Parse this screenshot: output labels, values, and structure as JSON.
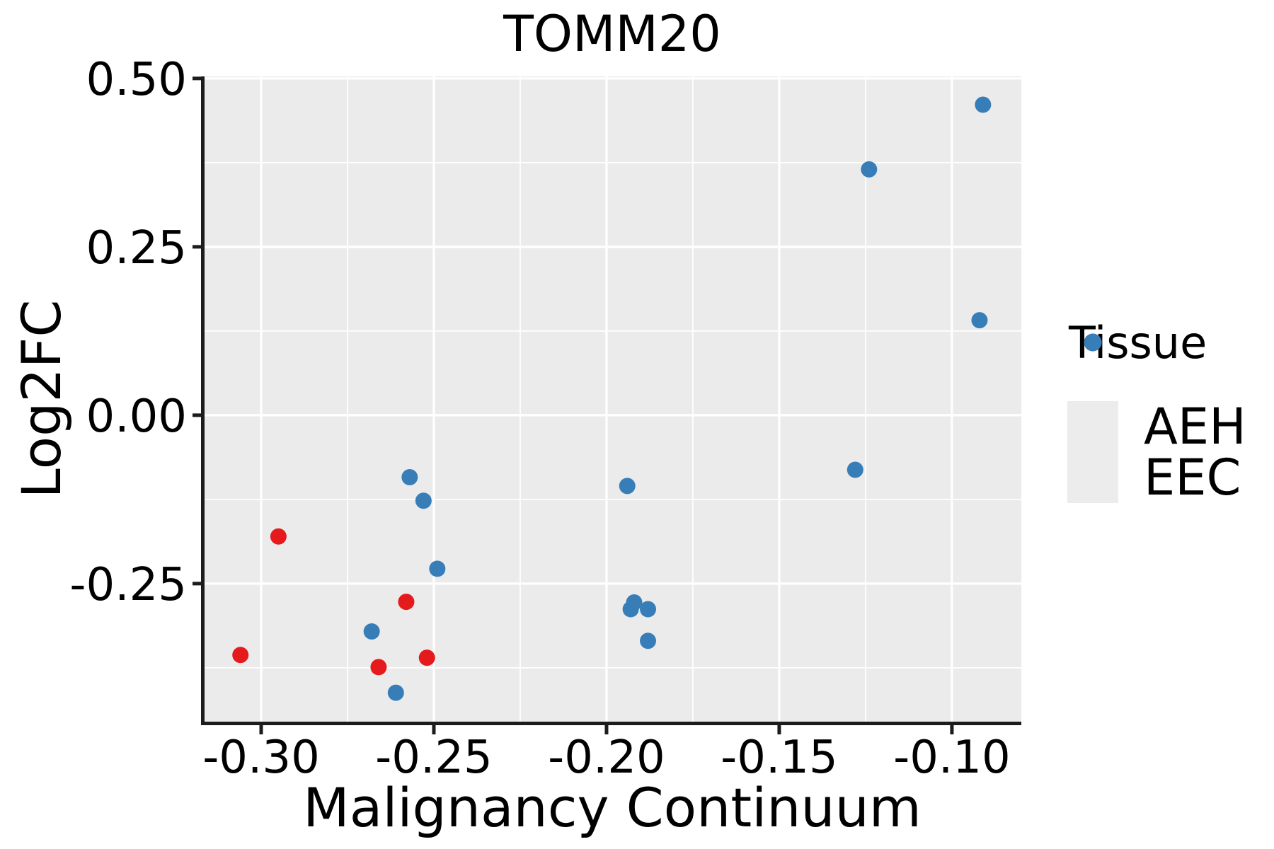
{
  "chart_data": {
    "type": "scatter",
    "title": "TOMM20",
    "xlabel": "Malignancy Continuum",
    "ylabel": "Log2FC",
    "xlim": [
      -0.3166,
      -0.0799
    ],
    "ylim": [
      -0.456,
      0.503
    ],
    "x_ticks": {
      "values": [
        -0.3,
        -0.25,
        -0.2,
        -0.15,
        -0.1
      ],
      "labels": [
        "-0.30",
        "-0.25",
        "-0.20",
        "-0.15",
        "-0.10"
      ]
    },
    "y_ticks": {
      "values": [
        0.5,
        0.25,
        0.0,
        -0.25
      ],
      "labels": [
        "0.50",
        "0.25",
        "0.00",
        "-0.25"
      ]
    },
    "x_minor": [
      -0.275,
      -0.225,
      -0.175,
      -0.125
    ],
    "y_minor": [
      0.375,
      0.125,
      -0.125,
      -0.375
    ],
    "grid": "white major and minor gridlines on gray panel",
    "legend_position": "right",
    "series": [
      {
        "name": "AEH",
        "color": "#E41A1C",
        "points": [
          [
            -0.306,
            -0.356
          ],
          [
            -0.295,
            -0.18
          ],
          [
            -0.266,
            -0.374
          ],
          [
            -0.258,
            -0.277
          ],
          [
            -0.252,
            -0.36
          ]
        ]
      },
      {
        "name": "EEC",
        "color": "#377EB8",
        "points": [
          [
            -0.268,
            -0.321
          ],
          [
            -0.261,
            -0.412
          ],
          [
            -0.257,
            -0.092
          ],
          [
            -0.253,
            -0.127
          ],
          [
            -0.249,
            -0.228
          ],
          [
            -0.194,
            -0.105
          ],
          [
            -0.192,
            -0.278
          ],
          [
            -0.193,
            -0.288
          ],
          [
            -0.188,
            -0.288
          ],
          [
            -0.188,
            -0.335
          ],
          [
            -0.128,
            -0.081
          ],
          [
            -0.124,
            0.365
          ],
          [
            -0.092,
            0.141
          ],
          [
            -0.091,
            0.461
          ]
        ]
      }
    ]
  },
  "legend": {
    "title": "Tissue",
    "items": [
      {
        "label": "AEH",
        "color": "#E41A1C"
      },
      {
        "label": "EEC",
        "color": "#377EB8"
      }
    ]
  },
  "colors": {
    "panel_bg": "#EBEBEB",
    "grid": "#FFFFFF",
    "axis": "#1C1C1C",
    "text": "#000000",
    "legend_key_bg": "#ECECEC"
  }
}
